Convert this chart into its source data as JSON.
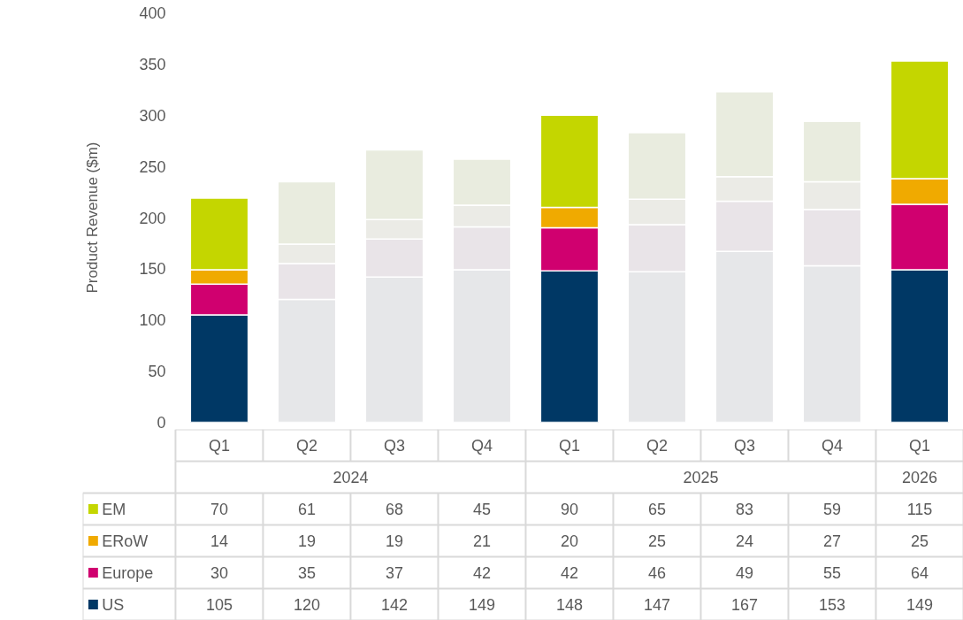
{
  "chart_data": {
    "type": "bar",
    "stacked": true,
    "ylabel": "Product Revenue ($m)",
    "categories": [
      "Q1",
      "Q2",
      "Q3",
      "Q4",
      "Q1",
      "Q2",
      "Q3",
      "Q4",
      "Q1"
    ],
    "annotations": [
      "2024",
      "2025",
      "2026"
    ],
    "series": [
      {
        "name": "US",
        "color": "#003865",
        "colors": [
          "#003865",
          "#e6e7e9",
          "#e6e7e9",
          "#e6e7e9",
          "#003865",
          "#e6e7e9",
          "#e6e7e9",
          "#e6e7e9",
          "#003865"
        ],
        "values": [
          105,
          120,
          142,
          149,
          148,
          147,
          167,
          153,
          149
        ]
      },
      {
        "name": "Europe",
        "color": "#d0006f",
        "colors": [
          "#d0006f",
          "#e9e4e8",
          "#e9e4e8",
          "#e9e4e8",
          "#d0006f",
          "#e9e4e8",
          "#e9e4e8",
          "#e9e4e8",
          "#d0006f"
        ],
        "values": [
          30,
          35,
          37,
          42,
          42,
          46,
          49,
          55,
          64
        ]
      },
      {
        "name": "ERoW",
        "color": "#f0aa00",
        "colors": [
          "#f0aa00",
          "#ebebe6",
          "#ebebe6",
          "#ebebe6",
          "#f0aa00",
          "#ebebe6",
          "#ebebe6",
          "#ebebe6",
          "#f0aa00"
        ],
        "values": [
          14,
          19,
          19,
          21,
          20,
          25,
          24,
          27,
          25
        ]
      },
      {
        "name": "EM",
        "color": "#c4d600",
        "colors": [
          "#c4d600",
          "#e9ecdf",
          "#e9ecdf",
          "#e9ecdf",
          "#c4d600",
          "#e9ecdf",
          "#e9ecdf",
          "#e9ecdf",
          "#c4d600"
        ],
        "values": [
          70,
          61,
          68,
          45,
          90,
          65,
          83,
          59,
          115
        ]
      }
    ],
    "ylim": [
      0,
      400
    ],
    "yticks": [
      0,
      50,
      100,
      150,
      200,
      250,
      300,
      350,
      400
    ],
    "data_labels": true,
    "legend": "bottom left"
  }
}
